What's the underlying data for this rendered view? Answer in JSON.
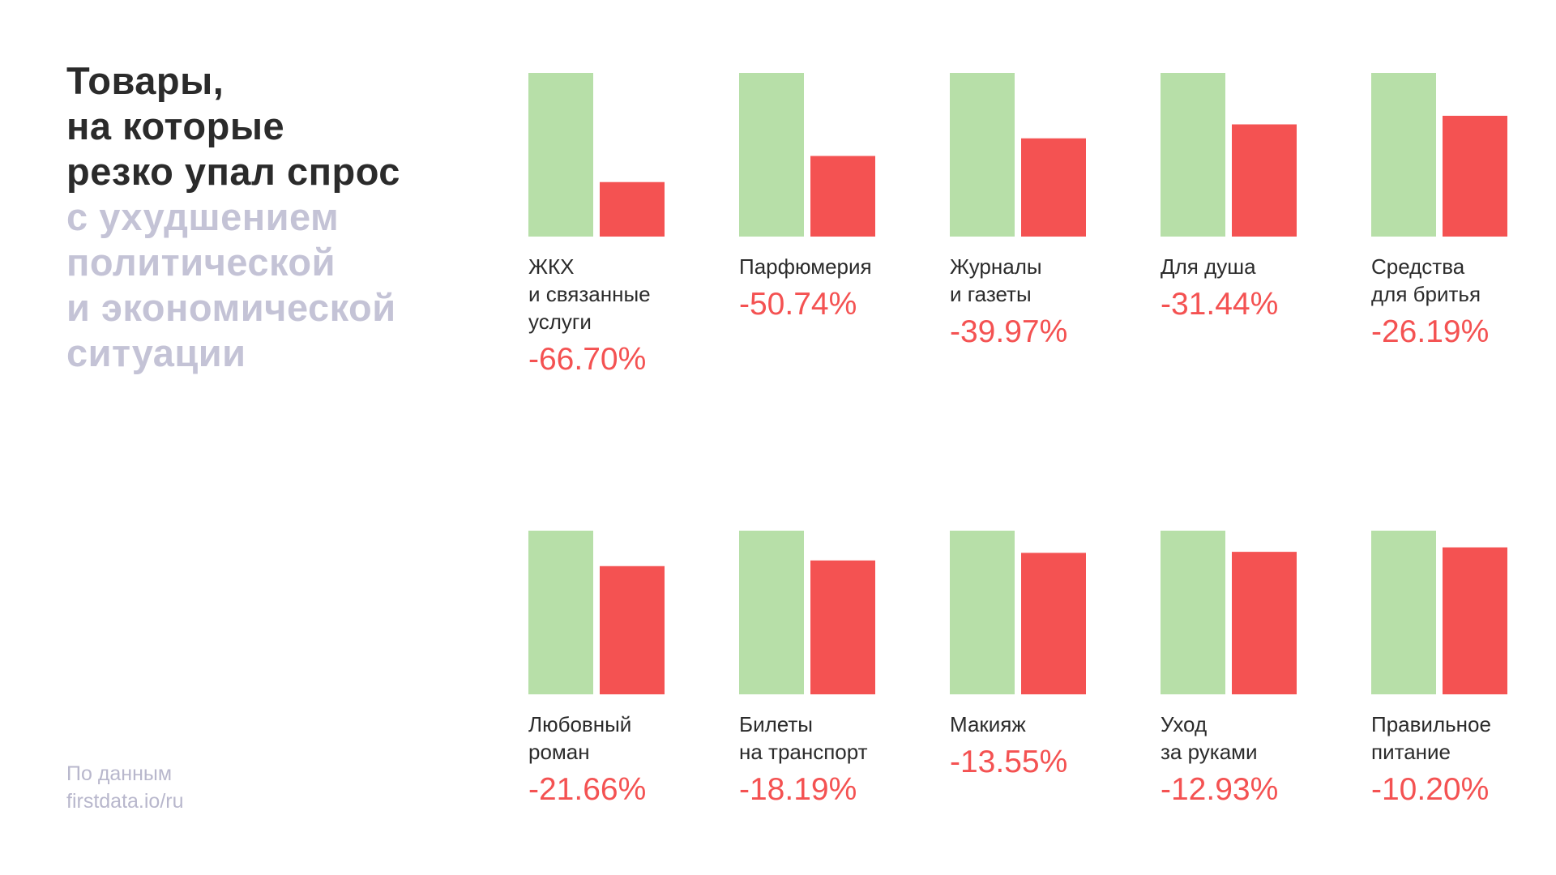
{
  "title": {
    "dark_lines": [
      "Товары,",
      "на которые",
      "резко упал спрос"
    ],
    "light_lines": [
      "с ухудшением",
      "политической",
      "и экономической",
      "ситуации"
    ]
  },
  "source": {
    "lines": [
      "По данным",
      "firstdata.io/ru"
    ]
  },
  "colors": {
    "before": "#b7dfa8",
    "after": "#f45252",
    "title_dark": "#2b2b2b",
    "title_light": "#c4c3d6"
  },
  "chart_data": {
    "type": "bar",
    "series": [
      {
        "values": [
          100,
          100,
          100,
          100,
          100,
          100,
          100,
          100,
          100,
          100
        ]
      },
      {
        "values": [
          33.3,
          49.26,
          60.03,
          68.56,
          73.81,
          78.34,
          81.81,
          86.45,
          87.07,
          89.8
        ]
      }
    ],
    "items": [
      {
        "label_lines": [
          "ЖКХ",
          "и связанные",
          "услуги"
        ],
        "change": -66.7,
        "change_label": "-66.70%"
      },
      {
        "label_lines": [
          "Парфюмерия"
        ],
        "change": -50.74,
        "change_label": "-50.74%"
      },
      {
        "label_lines": [
          "Журналы",
          "и газеты"
        ],
        "change": -39.97,
        "change_label": "-39.97%"
      },
      {
        "label_lines": [
          "Для душа"
        ],
        "change": -31.44,
        "change_label": "-31.44%"
      },
      {
        "label_lines": [
          "Средства",
          "для бритья"
        ],
        "change": -26.19,
        "change_label": "-26.19%"
      },
      {
        "label_lines": [
          "Любовный",
          "роман"
        ],
        "change": -21.66,
        "change_label": "-21.66%"
      },
      {
        "label_lines": [
          "Билеты",
          "на транспорт"
        ],
        "change": -18.19,
        "change_label": "-18.19%"
      },
      {
        "label_lines": [
          "Макияж"
        ],
        "change": -13.55,
        "change_label": "-13.55%"
      },
      {
        "label_lines": [
          "Уход",
          "за руками"
        ],
        "change": -12.93,
        "change_label": "-12.93%"
      },
      {
        "label_lines": [
          "Правильное",
          "питание"
        ],
        "change": -10.2,
        "change_label": "-10.20%"
      }
    ]
  }
}
